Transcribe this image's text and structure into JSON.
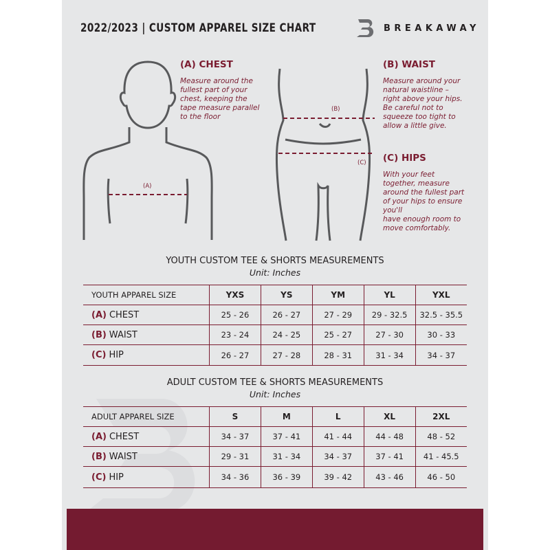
{
  "header": {
    "title": "2022/2023  |  CUSTOM APPAREL SIZE CHART",
    "brand": "BREAKAWAY"
  },
  "sections": {
    "chest": {
      "heading": "(A) CHEST",
      "text": "Measure around the\nfullest part of your\nchest, keeping the\ntape measure parallel\nto the floor",
      "marker": "(A)"
    },
    "waist": {
      "heading": "(B) WAIST",
      "text": "Measure around your\nnatural waistline –\nright above your hips.\nBe careful not to\nsqueeze too tight to\nallow a little give.",
      "marker": "(B)"
    },
    "hips": {
      "heading": "(C) HIPS",
      "text": "With your feet\ntogether, measure\naround the fullest part\nof your hips to ensure\nyou'll\nhave enough room to\nmove comfortably.",
      "marker": "(C)"
    }
  },
  "youth": {
    "title": "YOUTH CUSTOM TEE & SHORTS MEASUREMENTS",
    "unit": "Unit: Inches",
    "header": [
      "YOUTH APPAREL SIZE",
      "YXS",
      "YS",
      "YM",
      "YL",
      "YXL"
    ],
    "rows": [
      {
        "code": "(A)",
        "label": "CHEST",
        "values": [
          "25 - 26",
          "26 - 27",
          "27 - 29",
          "29 - 32.5",
          "32.5 - 35.5"
        ]
      },
      {
        "code": "(B)",
        "label": "WAIST",
        "values": [
          "23 - 24",
          "24 - 25",
          "25 - 27",
          "27 - 30",
          "30 - 33"
        ]
      },
      {
        "code": "(C)",
        "label": "HIP",
        "values": [
          "26 - 27",
          "27 - 28",
          "28 - 31",
          "31 - 34",
          "34 - 37"
        ]
      }
    ]
  },
  "adult": {
    "title": "ADULT CUSTOM TEE & SHORTS MEASUREMENTS",
    "unit": "Unit: Inches",
    "header": [
      "ADULT APPAREL SIZE",
      "S",
      "M",
      "L",
      "XL",
      "2XL"
    ],
    "rows": [
      {
        "code": "(A)",
        "label": "CHEST",
        "values": [
          "34 - 37",
          "37 - 41",
          "41 - 44",
          "44 - 48",
          "48 - 52"
        ]
      },
      {
        "code": "(B)",
        "label": "WAIST",
        "values": [
          "29 - 31",
          "31 - 34",
          "34 - 37",
          "37 - 41",
          "41 - 45.5"
        ]
      },
      {
        "code": "(C)",
        "label": "HIP",
        "values": [
          "34 - 36",
          "36 - 39",
          "39 - 42",
          "43 - 46",
          "46 - 50"
        ]
      }
    ]
  },
  "colors": {
    "accent": "#7a1c30",
    "background": "#e6e7e8",
    "footer": "#741b30"
  }
}
